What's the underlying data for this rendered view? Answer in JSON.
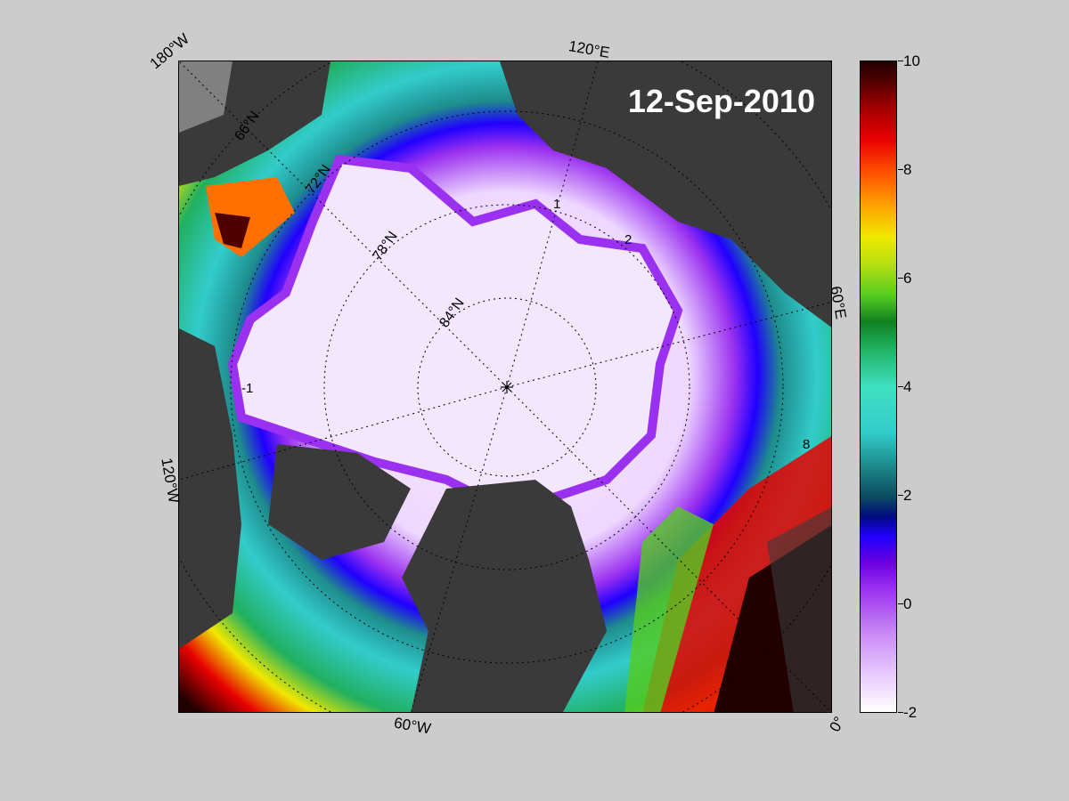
{
  "map": {
    "date": "12-Sep-2010",
    "longitude_labels": [
      "180°W",
      "120°E",
      "60°E",
      "0°",
      "60°W",
      "120°W"
    ],
    "latitude_labels": [
      "66°N",
      "72°N",
      "78°N",
      "84°N"
    ],
    "contour_labels": [
      "2",
      "1",
      "-1",
      "8"
    ]
  },
  "colorbar": {
    "ticks": [
      "10",
      "8",
      "6",
      "4",
      "2",
      "0",
      "-2"
    ],
    "min": -2,
    "max": 10,
    "colors": {
      "low": "#ffffff",
      "ice": "#e8c8ff",
      "purple": "#9a30f0",
      "blue": "#2000ff",
      "teal": "#1e8c8c",
      "cyan": "#33cccc",
      "green": "#108020",
      "yellow": "#f0e800",
      "orange": "#ffa000",
      "red": "#e80000",
      "high": "#220000",
      "land": "#3a3a3a",
      "background": "#cccccc"
    }
  }
}
